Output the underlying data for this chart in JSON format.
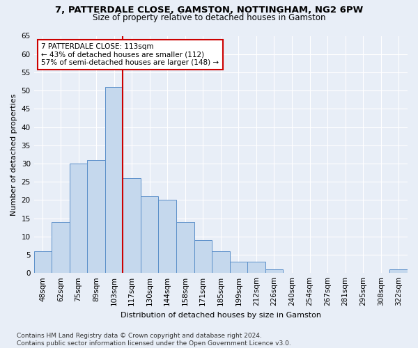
{
  "title1": "7, PATTERDALE CLOSE, GAMSTON, NOTTINGHAM, NG2 6PW",
  "title2": "Size of property relative to detached houses in Gamston",
  "xlabel": "Distribution of detached houses by size in Gamston",
  "ylabel": "Number of detached properties",
  "bar_labels": [
    "48sqm",
    "62sqm",
    "75sqm",
    "89sqm",
    "103sqm",
    "117sqm",
    "130sqm",
    "144sqm",
    "158sqm",
    "171sqm",
    "185sqm",
    "199sqm",
    "212sqm",
    "226sqm",
    "240sqm",
    "254sqm",
    "267sqm",
    "281sqm",
    "295sqm",
    "308sqm",
    "322sqm"
  ],
  "bar_values": [
    6,
    14,
    30,
    31,
    51,
    26,
    21,
    20,
    14,
    9,
    6,
    3,
    3,
    1,
    0,
    0,
    0,
    0,
    0,
    0,
    1
  ],
  "bar_color": "#c5d8ed",
  "bar_edge_color": "#5b8fc9",
  "vline_x": 4.5,
  "vline_color": "#cc0000",
  "annotation_text": "7 PATTERDALE CLOSE: 113sqm\n← 43% of detached houses are smaller (112)\n57% of semi-detached houses are larger (148) →",
  "annotation_box_color": "#ffffff",
  "annotation_box_edge_color": "#cc0000",
  "ylim": [
    0,
    65
  ],
  "yticks": [
    0,
    5,
    10,
    15,
    20,
    25,
    30,
    35,
    40,
    45,
    50,
    55,
    60,
    65
  ],
  "footnote": "Contains HM Land Registry data © Crown copyright and database right 2024.\nContains public sector information licensed under the Open Government Licence v3.0.",
  "bg_color": "#e8eef7",
  "plot_bg_color": "#e8eef7",
  "title1_fontsize": 9.5,
  "title2_fontsize": 8.5,
  "axis_label_fontsize": 8,
  "tick_fontsize": 7.5,
  "annotation_fontsize": 7.5,
  "footnote_fontsize": 6.5
}
